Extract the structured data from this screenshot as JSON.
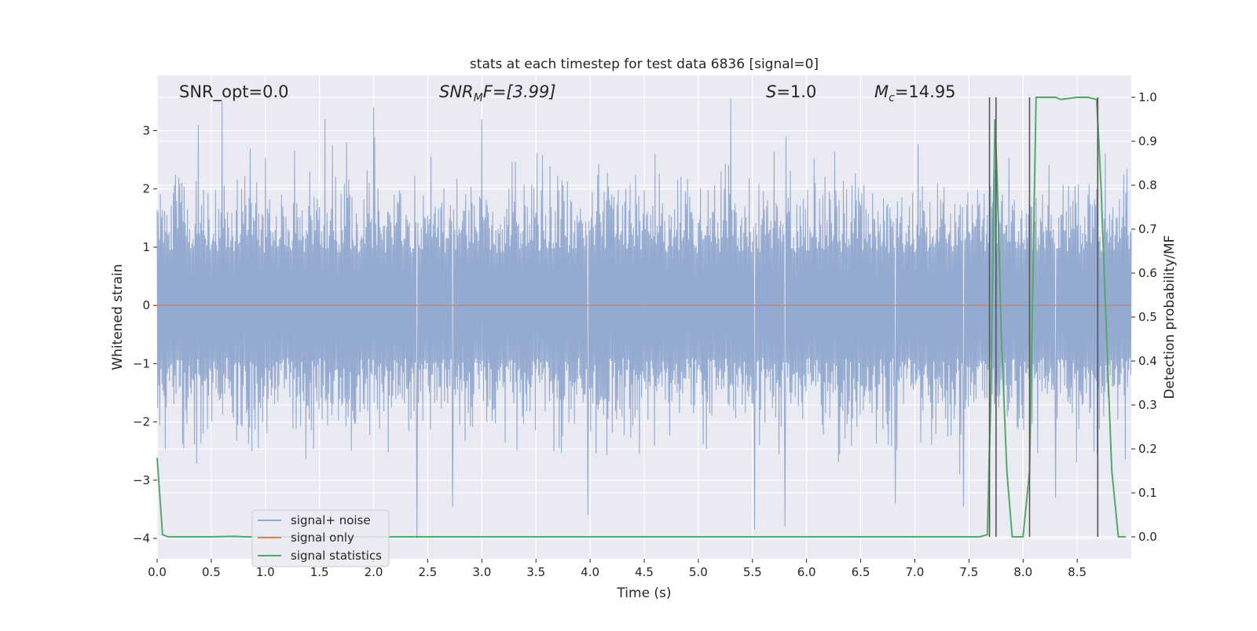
{
  "chart_data": {
    "type": "line",
    "title": "stats at each timestep for test data 6836 [signal=0]",
    "xlabel": "Time (s)",
    "ylabel_left": "Whitened strain",
    "ylabel_right": "Detection probability/MF",
    "xlim": [
      0.0,
      9.0
    ],
    "ylim_left": [
      -4.35,
      3.95
    ],
    "ylim_right": [
      -0.05,
      1.05
    ],
    "xticks": [
      "0.0",
      "0.5",
      "1.0",
      "1.5",
      "2.0",
      "2.5",
      "3.0",
      "3.5",
      "4.0",
      "4.5",
      "5.0",
      "5.5",
      "6.0",
      "6.5",
      "7.0",
      "7.5",
      "8.0",
      "8.5"
    ],
    "yticks_left": [
      "3",
      "2",
      "1",
      "0",
      "−1",
      "−2",
      "−3",
      "−4"
    ],
    "yticks_right": [
      "1.0",
      "0.9",
      "0.8",
      "0.7",
      "0.6",
      "0.5",
      "0.4",
      "0.3",
      "0.2",
      "0.1",
      "0.0"
    ],
    "grid": true,
    "legend_position": "lower-left",
    "annotations": {
      "snr_opt": "SNR_opt=0.0",
      "snr_mf_base": "SNR",
      "snr_mf_sub": "M",
      "snr_mf_rest": "F=[3.99]",
      "s_base": "S",
      "s_rest": "=1.0",
      "mc_base": "M",
      "mc_sub": "c",
      "mc_rest": "=14.95"
    },
    "series": [
      {
        "name": "signal+ noise",
        "color": "#8fa6cf",
        "axis": "left",
        "description_of_envelope": "noise approx. +/-1.7 typical, peaks to about +/-3.5",
        "peaks": [
          {
            "x": 0.38,
            "y": 3.1
          },
          {
            "x": 0.6,
            "y": 3.5
          },
          {
            "x": 1.55,
            "y": 3.2
          },
          {
            "x": 2.0,
            "y": 3.4
          },
          {
            "x": 2.4,
            "y": -4.0
          },
          {
            "x": 2.73,
            "y": -3.45
          },
          {
            "x": 3.0,
            "y": 3.2
          },
          {
            "x": 3.98,
            "y": -3.6
          },
          {
            "x": 5.3,
            "y": 3.55
          },
          {
            "x": 5.52,
            "y": -3.85
          },
          {
            "x": 5.8,
            "y": -3.8
          },
          {
            "x": 6.82,
            "y": -3.4
          },
          {
            "x": 7.45,
            "y": -3.45
          },
          {
            "x": 8.3,
            "y": -3.3
          }
        ]
      },
      {
        "name": "signal only",
        "color": "#dd8452",
        "axis": "left",
        "x": [
          0.0,
          9.0
        ],
        "y": [
          0.0,
          0.0
        ]
      },
      {
        "name": "signal statistics",
        "color": "#55a868",
        "axis": "right",
        "x": [
          0.0,
          0.05,
          0.1,
          0.15,
          0.5,
          0.72,
          0.8,
          1.0,
          2.0,
          3.0,
          4.0,
          5.0,
          6.0,
          7.0,
          7.6,
          7.67,
          7.7,
          7.74,
          7.76,
          7.8,
          7.85,
          7.9,
          7.95,
          8.0,
          8.06,
          8.12,
          8.15,
          8.2,
          8.3,
          8.35,
          8.4,
          8.5,
          8.6,
          8.68,
          8.72,
          8.78,
          8.82,
          8.88,
          8.95
        ],
        "y": [
          0.18,
          0.005,
          0.0,
          0.0,
          0.0,
          0.001,
          0.0,
          0.0,
          0.0,
          0.0,
          0.0,
          0.0,
          0.0,
          0.0,
          0.0,
          0.005,
          0.3,
          0.95,
          0.82,
          0.45,
          0.15,
          0.0,
          0.0,
          0.0,
          0.15,
          1.0,
          1.0,
          1.0,
          1.0,
          0.995,
          0.997,
          1.0,
          1.0,
          0.995,
          0.8,
          0.4,
          0.15,
          0.0,
          0.0
        ]
      }
    ],
    "vertical_lines": {
      "color": "#555555",
      "x": [
        7.69,
        7.75,
        8.06,
        8.69
      ],
      "y_range_right": [
        0.0,
        1.0
      ]
    }
  }
}
